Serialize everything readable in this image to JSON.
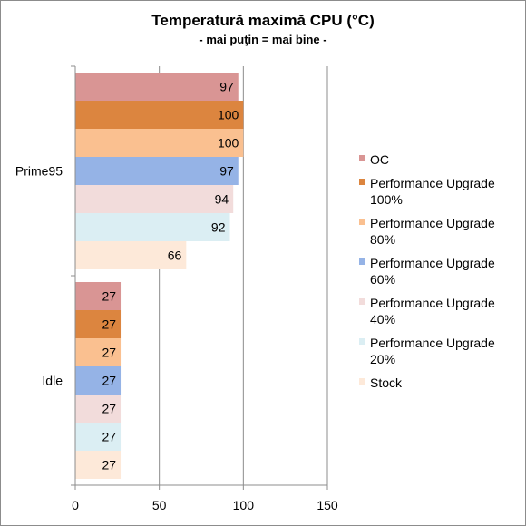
{
  "chart_data": {
    "type": "bar",
    "orientation": "horizontal",
    "title": "Temperatură maximă CPU (°C)",
    "subtitle": "- mai puţin = mai bine -",
    "xlabel": "",
    "ylabel": "",
    "xlim": [
      0,
      150
    ],
    "xticks": [
      "0",
      "50",
      "100",
      "150"
    ],
    "grid": true,
    "legend_position": "right",
    "categories": [
      "Prime95",
      "Idle"
    ],
    "series": [
      {
        "name": "OC",
        "legend_lines": [
          "OC"
        ],
        "color": "#d99594",
        "values": [
          97,
          27
        ]
      },
      {
        "name": "Performance Upgrade 100%",
        "legend_lines": [
          "Performance Upgrade",
          "100%"
        ],
        "color": "#dc853f",
        "values": [
          100,
          27
        ]
      },
      {
        "name": "Performance Upgrade 80%",
        "legend_lines": [
          "Performance Upgrade",
          "80%"
        ],
        "color": "#fac090",
        "values": [
          100,
          27
        ]
      },
      {
        "name": "Performance Upgrade 60%",
        "legend_lines": [
          "Performance Upgrade",
          "60%"
        ],
        "color": "#95b3e6",
        "values": [
          97,
          27
        ]
      },
      {
        "name": "Performance Upgrade 40%",
        "legend_lines": [
          "Performance Upgrade",
          "40%"
        ],
        "color": "#f2dcdb",
        "values": [
          94,
          27
        ]
      },
      {
        "name": "Performance Upgrade 20%",
        "legend_lines": [
          "Performance Upgrade",
          "20%"
        ],
        "color": "#dbeef3",
        "values": [
          92,
          27
        ]
      },
      {
        "name": "Stock",
        "legend_lines": [
          "Stock"
        ],
        "color": "#fde9d9",
        "values": [
          66,
          27
        ]
      }
    ]
  }
}
